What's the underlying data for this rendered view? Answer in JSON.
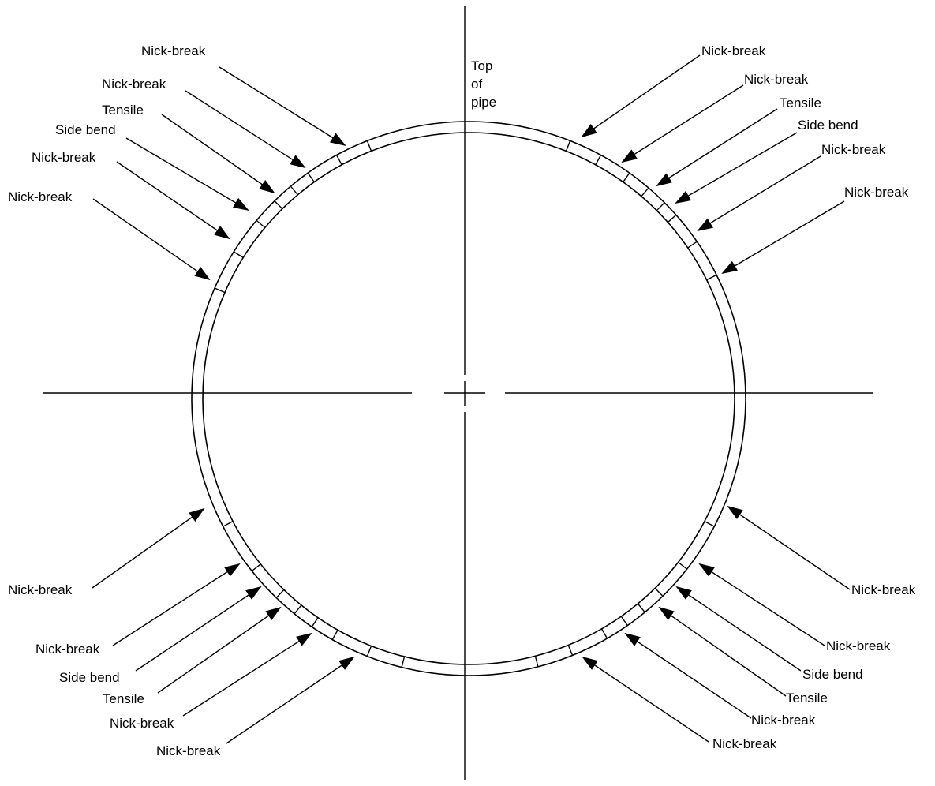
{
  "colors": {
    "line": "#000000",
    "background": "#ffffff"
  },
  "top_label": [
    "Top",
    "of",
    "pipe"
  ],
  "labels": {
    "upper_left": [
      "Nick-break",
      "Nick-break",
      "Tensile",
      "Side bend",
      "Nick-break",
      "Nick-break"
    ],
    "upper_right": [
      "Nick-break",
      "Nick-break",
      "Tensile",
      "Side bend",
      "Nick-break",
      "Nick-break"
    ],
    "lower_left": [
      "Nick-break",
      "Nick-break",
      "Side bend",
      "Tensile",
      "Nick-break",
      "Nick-break"
    ],
    "lower_right": [
      "Nick-break",
      "Nick-break",
      "Side bend",
      "Tensile",
      "Nick-break",
      "Nick-break"
    ]
  }
}
